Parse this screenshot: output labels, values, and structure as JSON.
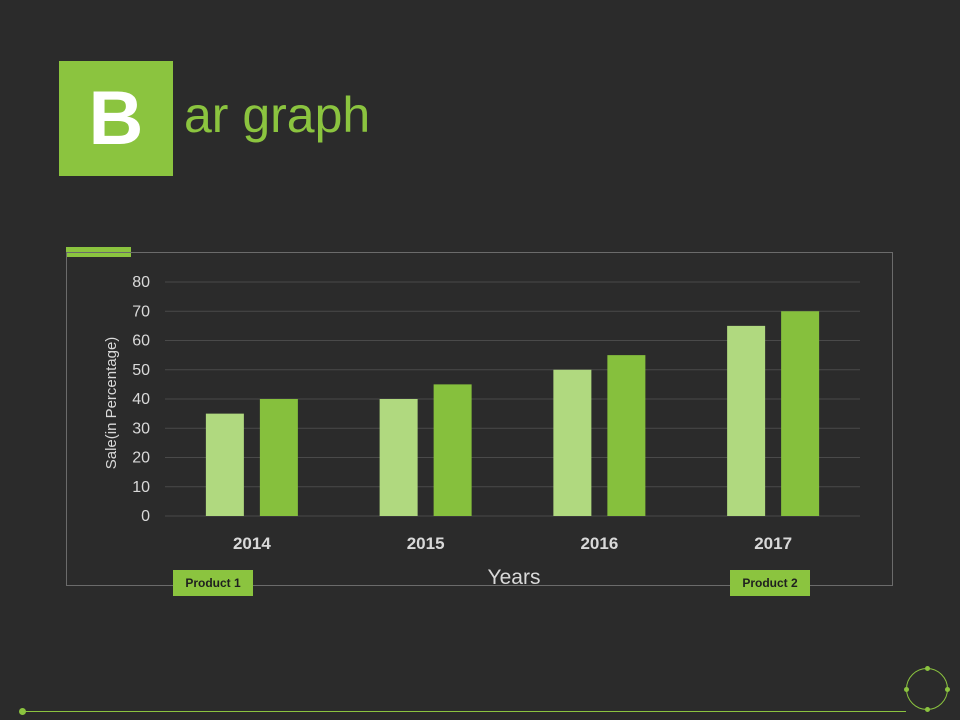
{
  "title": {
    "letter": "B",
    "rest": "ar graph"
  },
  "colors": {
    "background": "#2b2b2b",
    "accent": "#8bc43f",
    "product1": "#b0d97f",
    "product2": "#86c03d",
    "grid": "#4a4a4a",
    "axis_text": "#d9d9d9"
  },
  "legend": {
    "product1_label": "Product 1",
    "product2_label": "Product 2"
  },
  "chart_data": {
    "type": "bar",
    "title": "",
    "xlabel": "Years",
    "ylabel": "Sale(in Percentage)",
    "categories": [
      "2014",
      "2015",
      "2016",
      "2017"
    ],
    "series": [
      {
        "name": "Product 1",
        "values": [
          35,
          40,
          50,
          65
        ]
      },
      {
        "name": "Product 2",
        "values": [
          40,
          45,
          55,
          70
        ]
      }
    ],
    "ylim": [
      0,
      80
    ],
    "yticks": [
      "0",
      "10",
      "20",
      "30",
      "40",
      "50",
      "60",
      "70",
      "80"
    ],
    "grid": true,
    "legend_position": "bottom"
  }
}
